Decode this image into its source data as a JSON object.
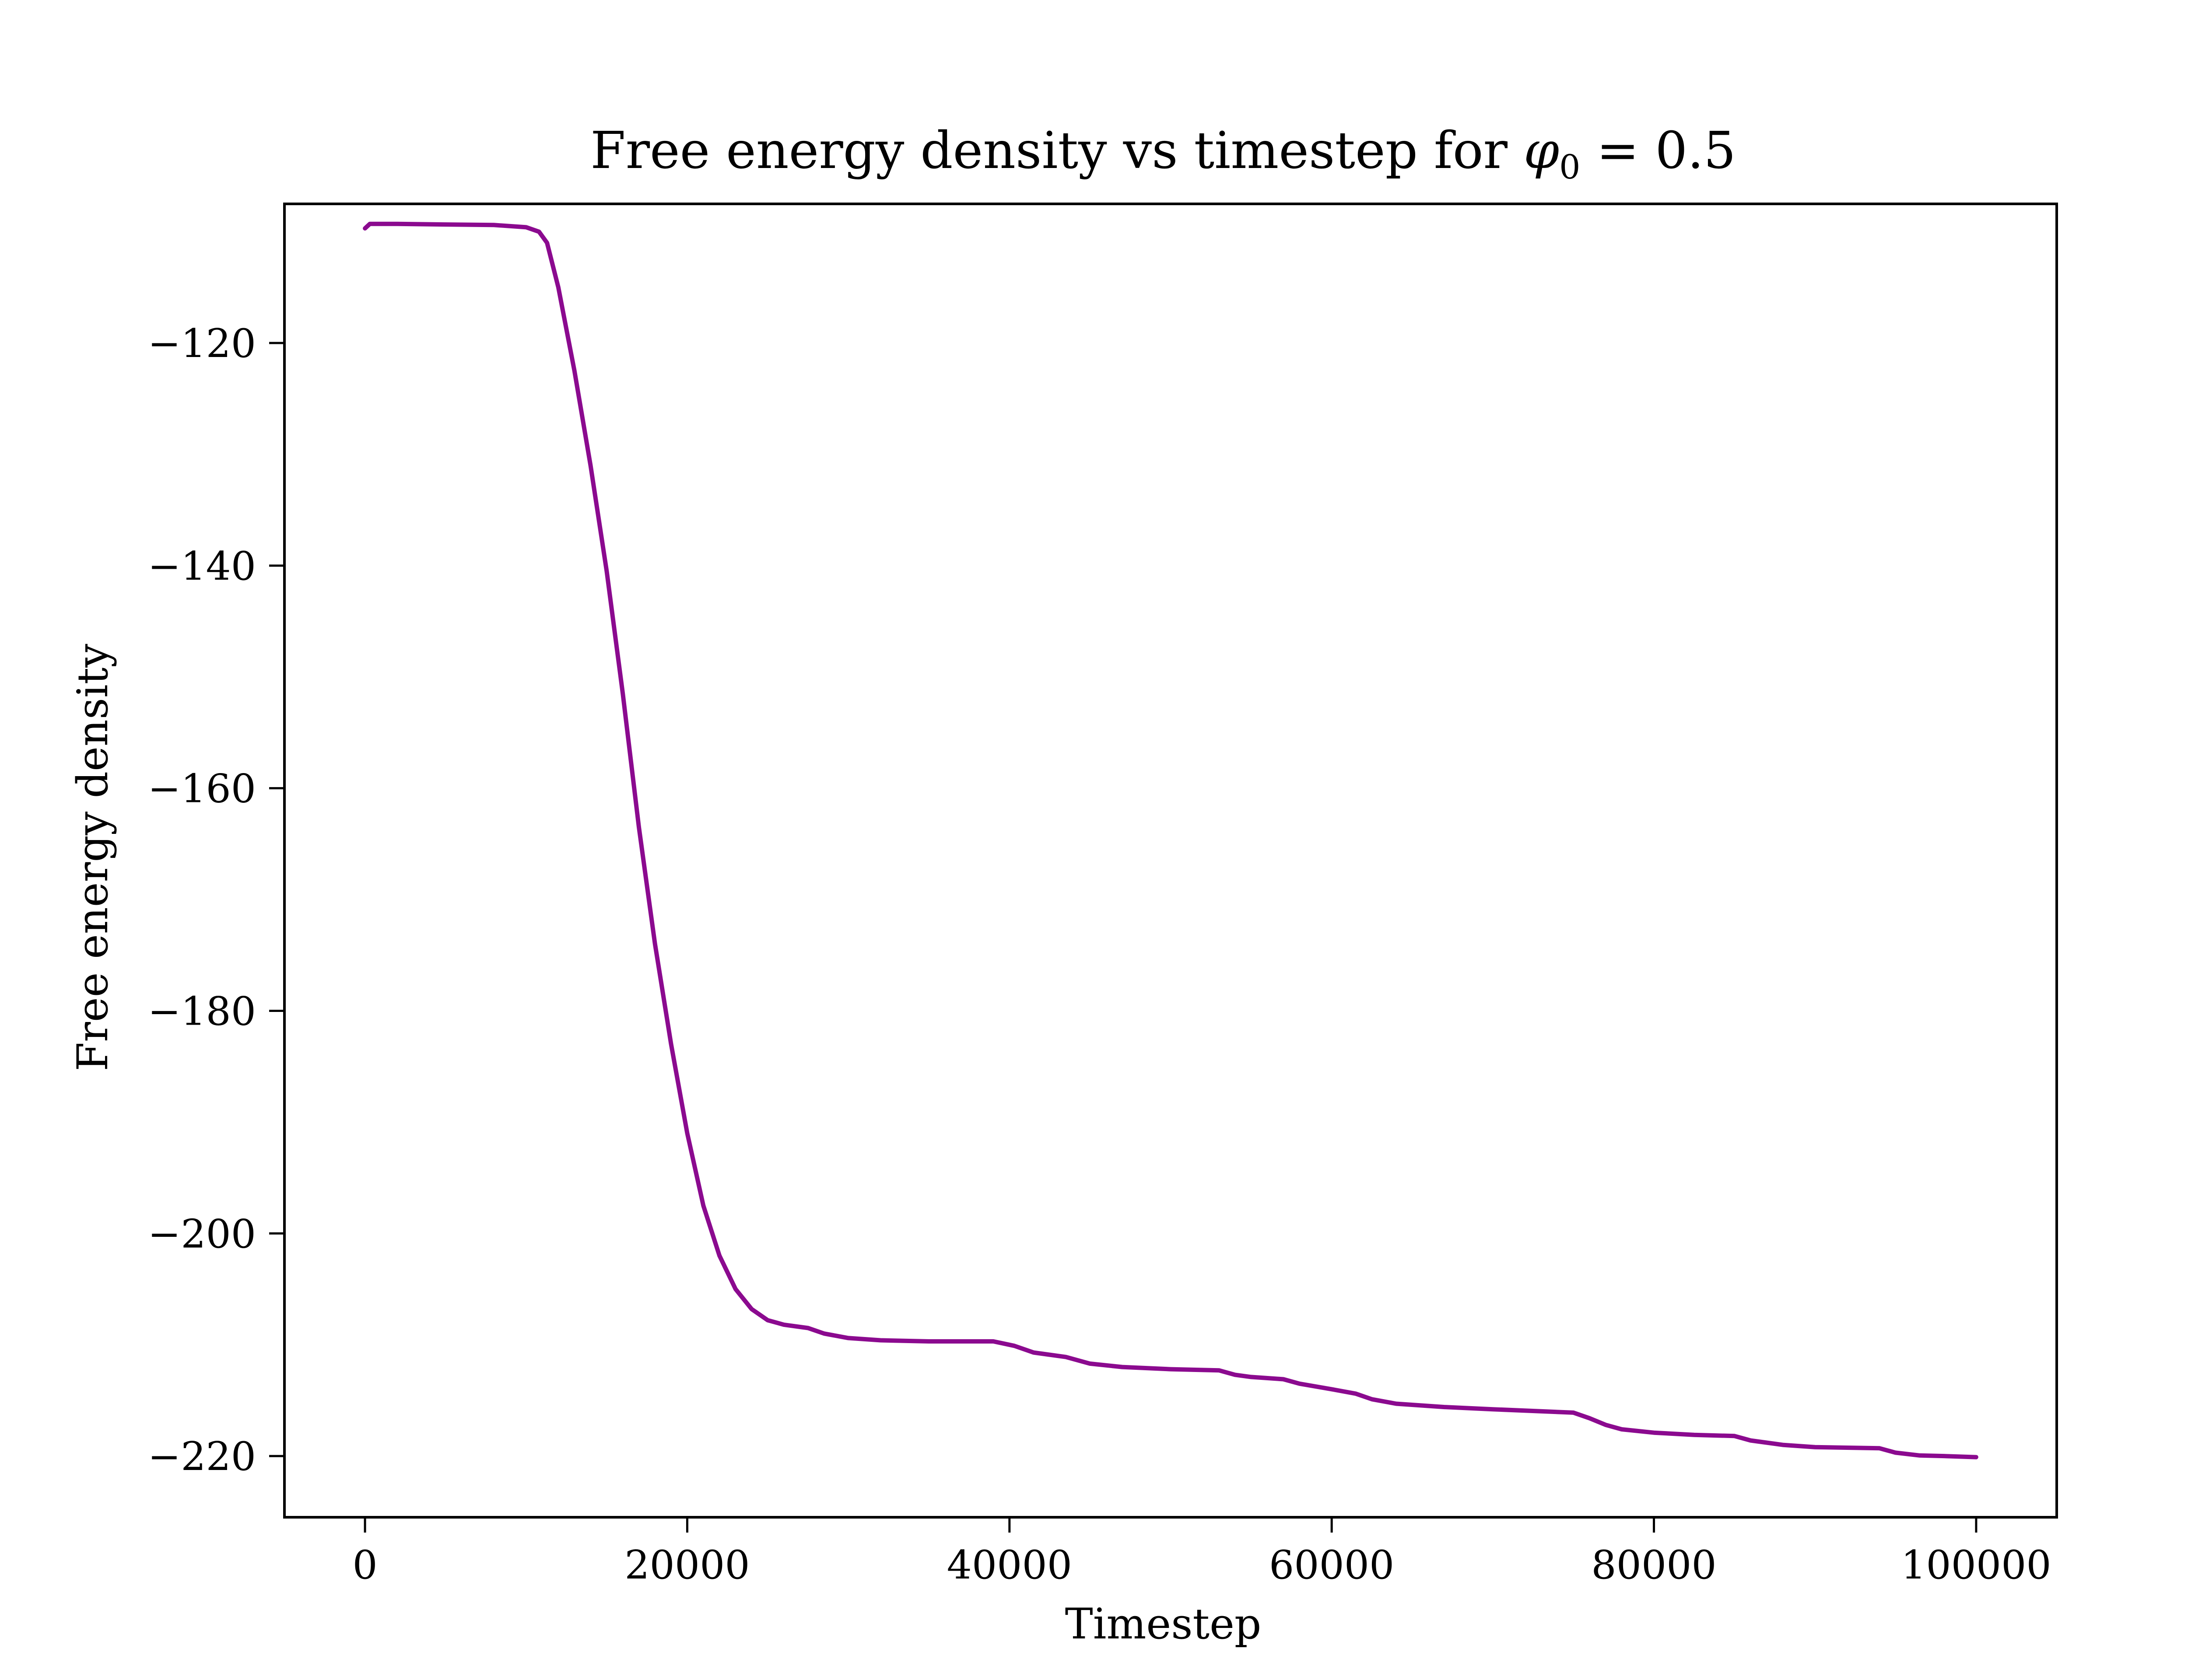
{
  "chart_data": {
    "type": "line",
    "title_prefix": "Free energy density vs timestep for ",
    "title_symbol": "φ",
    "title_subscript": "0",
    "title_suffix": " = 0.5",
    "xlabel": "Timestep",
    "ylabel": "Free energy density",
    "xlim": [
      -5000,
      105000
    ],
    "ylim": [
      -225.5,
      -107.5
    ],
    "xticks": [
      0,
      20000,
      40000,
      60000,
      80000,
      100000
    ],
    "xtick_labels": [
      "0",
      "20000",
      "40000",
      "60000",
      "80000",
      "100000"
    ],
    "yticks": [
      -120,
      -140,
      -160,
      -180,
      -200,
      -220
    ],
    "ytick_labels": [
      "−120",
      "−140",
      "−160",
      "−180",
      "−200",
      "−220"
    ],
    "grid": false,
    "line_color": "#8b0a8f",
    "series": [
      {
        "x": [
          0,
          300,
          2000,
          5000,
          8000,
          10000,
          10800,
          11300,
          12000,
          13000,
          14000,
          15000,
          16000,
          17000,
          18000,
          19000,
          20000,
          21000,
          22000,
          23000,
          24000,
          25000,
          26000,
          27500,
          28500,
          30000,
          32000,
          35000,
          39000,
          40300,
          41500,
          43500,
          45000,
          47000,
          50000,
          53000,
          54000,
          55000,
          57000,
          58000,
          60000,
          61500,
          62500,
          64000,
          67000,
          70000,
          75000,
          76000,
          77000,
          78000,
          80000,
          82500,
          85000,
          86000,
          88000,
          90000,
          94000,
          95000,
          96500,
          98000,
          100000
        ],
        "y": [
          -109.7,
          -109.3,
          -109.3,
          -109.35,
          -109.4,
          -109.6,
          -110.0,
          -111.0,
          -115.0,
          -122.5,
          -131.0,
          -140.5,
          -151.5,
          -163.5,
          -174.0,
          -183.0,
          -191.0,
          -197.5,
          -202.0,
          -205.0,
          -206.8,
          -207.8,
          -208.2,
          -208.5,
          -209.0,
          -209.4,
          -209.6,
          -209.7,
          -209.7,
          -210.1,
          -210.7,
          -211.1,
          -211.7,
          -212.0,
          -212.2,
          -212.3,
          -212.7,
          -212.9,
          -213.1,
          -213.5,
          -214.0,
          -214.4,
          -214.9,
          -215.3,
          -215.6,
          -215.8,
          -216.1,
          -216.6,
          -217.2,
          -217.6,
          -217.9,
          -218.1,
          -218.2,
          -218.6,
          -219.0,
          -219.2,
          -219.3,
          -219.7,
          -219.95,
          -220.0,
          -220.1
        ]
      }
    ]
  }
}
